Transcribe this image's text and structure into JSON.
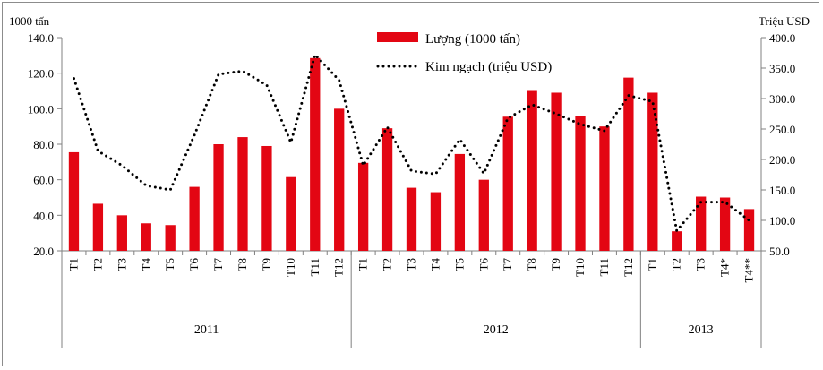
{
  "chart_data": {
    "type": "bar+line",
    "left_axis_title": "1000 tấn",
    "right_axis_title": "Triệu USD",
    "y_left": {
      "min": 20,
      "max": 140,
      "ticks": [
        "20.0",
        "40.0",
        "60.0",
        "80.0",
        "100.0",
        "120.0",
        "140.0"
      ]
    },
    "y_right": {
      "min": 50,
      "max": 400,
      "ticks": [
        "50.0",
        "100.0",
        "150.0",
        "200.0",
        "250.0",
        "300.0",
        "350.0",
        "400.0"
      ]
    },
    "categories": [
      "T1",
      "T2",
      "T3",
      "T4",
      "T5",
      "T6",
      "T7",
      "T8",
      "T9",
      "T10",
      "T11",
      "T12",
      "T1",
      "T2",
      "T3",
      "T4",
      "T5",
      "T6",
      "T7",
      "T8",
      "T9",
      "T10",
      "T11",
      "T12",
      "T1",
      "T2",
      "T3",
      "T4*",
      "T4**"
    ],
    "groups": [
      {
        "label": "2011",
        "count": 12
      },
      {
        "label": "2012",
        "count": 12
      },
      {
        "label": "2013",
        "count": 5
      }
    ],
    "series": [
      {
        "name": "Lượng (1000 tấn)",
        "type": "bar",
        "axis": "left",
        "color": "#e30613",
        "values": [
          75.5,
          46.5,
          40,
          35.5,
          34.5,
          56,
          80,
          84,
          79,
          61.5,
          128.5,
          100,
          69.5,
          89,
          55.5,
          53,
          74.5,
          60,
          95.5,
          110,
          109,
          96,
          90,
          117.5,
          109,
          31,
          50.5,
          50,
          43.5
        ]
      },
      {
        "name": "Kim ngạch (triệu USD)",
        "type": "line",
        "style": "dotted",
        "axis": "right",
        "color": "#000000",
        "values": [
          333,
          214,
          190,
          157,
          150,
          240,
          340,
          345,
          322,
          228,
          372,
          330,
          190,
          253,
          181,
          176,
          233,
          177,
          268,
          290,
          275,
          258,
          247,
          305,
          295,
          83,
          130,
          130,
          100
        ]
      }
    ],
    "legend_position": "top-center",
    "grid": false
  }
}
